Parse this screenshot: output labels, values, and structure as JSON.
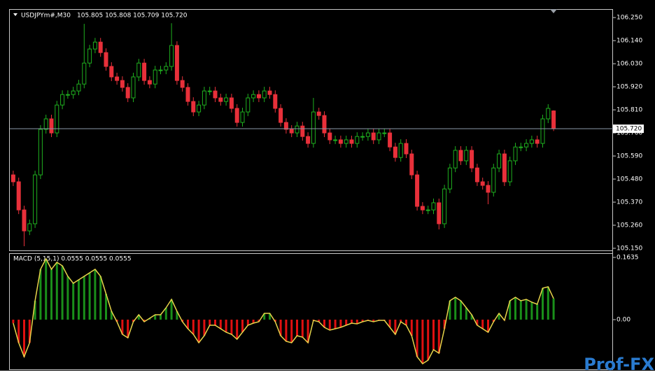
{
  "watermark": "Prof-FX",
  "chart_data": [
    {
      "type": "candlestick",
      "title": "USDJPYm#,M30",
      "subtitle": "105.805 105.808 105.709 105.720",
      "open": [
        105.5,
        105.467,
        105.333,
        105.233,
        105.267,
        105.5,
        105.717,
        105.767,
        105.7,
        105.833,
        105.883,
        105.883,
        105.9,
        105.933,
        106.033,
        106.1,
        106.133,
        106.083,
        106.017,
        105.967,
        105.95,
        105.917,
        105.867,
        105.967,
        106.033,
        105.95,
        105.933,
        106.0,
        106.0,
        106.017,
        106.117,
        105.95,
        105.917,
        105.85,
        105.8,
        105.833,
        105.9,
        105.9,
        105.867,
        105.85,
        105.867,
        105.817,
        105.75,
        105.8,
        105.867,
        105.883,
        105.867,
        105.9,
        105.883,
        105.817,
        105.75,
        105.717,
        105.7,
        105.733,
        105.683,
        105.65,
        105.8,
        105.783,
        105.7,
        105.667,
        105.667,
        105.65,
        105.667,
        105.65,
        105.683,
        105.683,
        105.7,
        105.667,
        105.7,
        105.7,
        105.633,
        105.583,
        105.65,
        105.6,
        105.5,
        105.35,
        105.333,
        105.333,
        105.367,
        105.267,
        105.433,
        105.533,
        105.617,
        105.567,
        105.617,
        105.533,
        105.467,
        105.45,
        105.417,
        105.533,
        105.6,
        105.467,
        105.567,
        105.633,
        105.633,
        105.65,
        105.667,
        105.65,
        105.767,
        105.805
      ],
      "high": [
        105.52,
        105.487,
        105.353,
        105.287,
        105.52,
        105.737,
        105.787,
        105.787,
        105.853,
        105.903,
        105.903,
        105.92,
        105.953,
        106.22,
        106.12,
        106.153,
        106.153,
        106.103,
        106.037,
        105.987,
        105.97,
        105.937,
        105.987,
        106.053,
        106.053,
        105.97,
        106.02,
        106.02,
        106.037,
        106.223,
        106.137,
        105.97,
        105.937,
        105.87,
        105.853,
        105.92,
        105.92,
        105.92,
        105.887,
        105.887,
        105.887,
        105.837,
        105.82,
        105.887,
        105.903,
        105.903,
        105.92,
        105.92,
        105.903,
        105.837,
        105.77,
        105.737,
        105.753,
        105.753,
        105.703,
        105.867,
        105.82,
        105.803,
        105.72,
        105.687,
        105.687,
        105.687,
        105.687,
        105.703,
        105.703,
        105.72,
        105.72,
        105.72,
        105.72,
        105.72,
        105.653,
        105.67,
        105.67,
        105.62,
        105.52,
        105.37,
        105.353,
        105.387,
        105.387,
        105.453,
        105.553,
        105.637,
        105.637,
        105.637,
        105.637,
        105.553,
        105.487,
        105.47,
        105.553,
        105.62,
        105.62,
        105.587,
        105.653,
        105.653,
        105.67,
        105.687,
        105.687,
        105.787,
        105.837,
        105.808
      ],
      "low": [
        105.447,
        105.313,
        105.16,
        105.213,
        105.247,
        105.48,
        105.697,
        105.68,
        105.68,
        105.813,
        105.863,
        105.863,
        105.88,
        105.913,
        106.013,
        106.08,
        106.063,
        105.997,
        105.947,
        105.93,
        105.897,
        105.847,
        105.847,
        105.947,
        105.93,
        105.913,
        105.913,
        105.98,
        105.98,
        105.997,
        105.93,
        105.897,
        105.83,
        105.78,
        105.78,
        105.813,
        105.88,
        105.847,
        105.83,
        105.83,
        105.797,
        105.73,
        105.73,
        105.78,
        105.847,
        105.847,
        105.847,
        105.863,
        105.797,
        105.73,
        105.697,
        105.68,
        105.68,
        105.663,
        105.63,
        105.63,
        105.763,
        105.68,
        105.647,
        105.647,
        105.63,
        105.63,
        105.63,
        105.63,
        105.663,
        105.663,
        105.647,
        105.647,
        105.68,
        105.613,
        105.563,
        105.563,
        105.58,
        105.48,
        105.33,
        105.313,
        105.313,
        105.313,
        105.24,
        105.247,
        105.413,
        105.513,
        105.547,
        105.547,
        105.513,
        105.447,
        105.43,
        105.36,
        105.397,
        105.513,
        105.447,
        105.447,
        105.547,
        105.613,
        105.613,
        105.63,
        105.63,
        105.63,
        105.747,
        105.709
      ],
      "close": [
        105.467,
        105.333,
        105.233,
        105.267,
        105.5,
        105.717,
        105.767,
        105.7,
        105.833,
        105.883,
        105.883,
        105.9,
        105.933,
        106.033,
        106.1,
        106.133,
        106.083,
        106.017,
        105.967,
        105.95,
        105.917,
        105.867,
        105.967,
        106.033,
        105.95,
        105.933,
        106.0,
        106.0,
        106.017,
        106.117,
        105.95,
        105.917,
        105.85,
        105.8,
        105.833,
        105.9,
        105.9,
        105.867,
        105.85,
        105.867,
        105.817,
        105.75,
        105.8,
        105.867,
        105.883,
        105.867,
        105.9,
        105.883,
        105.817,
        105.75,
        105.717,
        105.7,
        105.733,
        105.683,
        105.65,
        105.8,
        105.783,
        105.7,
        105.667,
        105.667,
        105.65,
        105.667,
        105.65,
        105.683,
        105.683,
        105.7,
        105.667,
        105.7,
        105.7,
        105.633,
        105.583,
        105.65,
        105.6,
        105.5,
        105.35,
        105.333,
        105.333,
        105.367,
        105.267,
        105.433,
        105.533,
        105.617,
        105.567,
        105.617,
        105.533,
        105.467,
        105.45,
        105.417,
        105.533,
        105.6,
        105.467,
        105.567,
        105.633,
        105.633,
        105.65,
        105.667,
        105.65,
        105.767,
        105.817,
        105.72
      ],
      "up_color": "#1fb01f",
      "down_color": "#e8303a",
      "ylim": [
        105.14,
        106.287
      ],
      "yticks": [
        {
          "value": 106.25,
          "label": "106.250"
        },
        {
          "value": 106.14,
          "label": "106.140"
        },
        {
          "value": 106.03,
          "label": "106.030"
        },
        {
          "value": 105.92,
          "label": "105.920"
        },
        {
          "value": 105.81,
          "label": "105.810"
        },
        {
          "value": 105.7,
          "label": "105.700"
        },
        {
          "value": 105.59,
          "label": "105.590"
        },
        {
          "value": 105.48,
          "label": "105.480"
        },
        {
          "value": 105.37,
          "label": "105.370"
        },
        {
          "value": 105.26,
          "label": "105.260"
        },
        {
          "value": 105.15,
          "label": "105.150"
        }
      ],
      "last_price": {
        "value": 105.72,
        "label": "105.720"
      }
    },
    {
      "type": "macd",
      "title": "MACD (5,15,1) 0.0555 0.0555 0.0555",
      "values": [
        -0.0092,
        -0.0606,
        -0.0974,
        -0.0606,
        0.0496,
        0.1323,
        0.1598,
        0.1323,
        0.1506,
        0.1414,
        0.1139,
        0.0955,
        0.1047,
        0.1139,
        0.1231,
        0.1323,
        0.1139,
        0.068,
        0.022,
        -0.0055,
        -0.0386,
        -0.0478,
        -0.0055,
        0.0129,
        -0.0055,
        0.0037,
        0.0129,
        0.0129,
        0.0312,
        0.0533,
        0.022,
        -0.0055,
        -0.0239,
        -0.0386,
        -0.0606,
        -0.0423,
        -0.0147,
        -0.0147,
        -0.0239,
        -0.0331,
        -0.0386,
        -0.0514,
        -0.0331,
        -0.0147,
        -0.0092,
        -0.0055,
        0.0165,
        0.0165,
        -0.0055,
        -0.0423,
        -0.0569,
        -0.0606,
        -0.0423,
        -0.0459,
        -0.0606,
        -0.0018,
        -0.0055,
        -0.0202,
        -0.0276,
        -0.0239,
        -0.0202,
        -0.0147,
        -0.0092,
        -0.011,
        -0.0055,
        -0.0018,
        -0.0055,
        -0.0018,
        -0.0018,
        -0.0202,
        -0.0386,
        -0.0055,
        -0.0147,
        -0.0423,
        -0.0974,
        -0.1157,
        -0.1065,
        -0.079,
        -0.0882,
        -0.0239,
        0.0496,
        0.0588,
        0.0496,
        0.0312,
        0.0129,
        -0.0147,
        -0.0239,
        -0.0331,
        -0.0055,
        0.0165,
        -0.0018,
        0.0496,
        0.0588,
        0.0496,
        0.0533,
        0.0459,
        0.0404,
        0.0827,
        0.0863,
        0.0555
      ],
      "positive_color": "#1a8f1a",
      "negative_color": "#e01010",
      "line_color": "#e8d44a",
      "ylim": [
        -0.1286,
        0.1745
      ],
      "yticks": [
        0.1635,
        {
          "value": 0,
          "label": "0.00"
        }
      ]
    }
  ]
}
